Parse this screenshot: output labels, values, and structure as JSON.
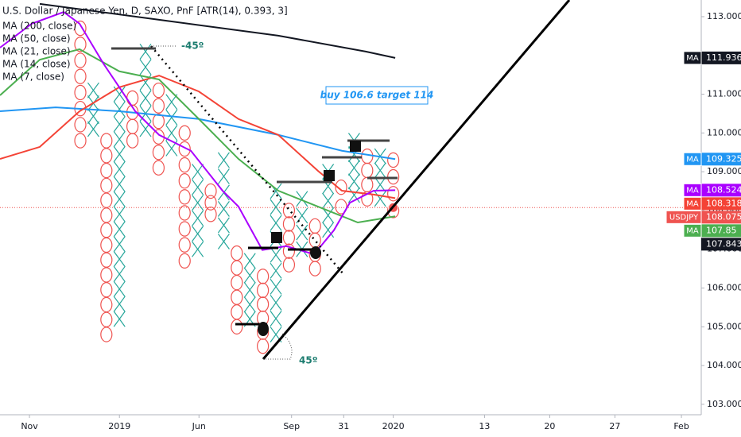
{
  "chart_data": {
    "type": "pnf",
    "title": "U.S. Dollar / Japanese Yen, D, SAXO, PnF [ATR(14), 0.393, 3]",
    "box_size": 0.393,
    "ylim": [
      102.73,
      113.43
    ],
    "yticks": [
      {
        "value": 103,
        "label": "103.000"
      },
      {
        "value": 104,
        "label": "104.000"
      },
      {
        "value": 105,
        "label": "105.000"
      },
      {
        "value": 106,
        "label": "106.000"
      },
      {
        "value": 107,
        "label": "107.000"
      },
      {
        "value": 108,
        "label": "108.000"
      },
      {
        "value": 109,
        "label": "109.000"
      },
      {
        "value": 110,
        "label": "110.000"
      },
      {
        "value": 111,
        "label": "111.000"
      },
      {
        "value": 112,
        "label": "112.000"
      },
      {
        "value": 113,
        "label": "113.000"
      }
    ],
    "xlim": [
      -6.16,
      47.62
    ],
    "xticks": [
      {
        "value": -3.9,
        "label": "Nov"
      },
      {
        "value": 3.0,
        "label": "2019"
      },
      {
        "value": 9.1,
        "label": "Jun"
      },
      {
        "value": 16.2,
        "label": "Sep"
      },
      {
        "value": 20.2,
        "label": "31"
      },
      {
        "value": 24.0,
        "label": "2020"
      },
      {
        "value": 31.0,
        "label": "13"
      },
      {
        "value": 36.0,
        "label": "20"
      },
      {
        "value": 41.0,
        "label": "27"
      },
      {
        "value": 46.1,
        "label": "Feb"
      }
    ],
    "colors": {
      "X": "#26a69a",
      "O": "#ef5350"
    },
    "columns": [
      {
        "x": 0,
        "kind": "O",
        "high": 112.7,
        "low": 109.8
      },
      {
        "x": 1,
        "kind": "X",
        "high": 111.1,
        "low": 110.1
      },
      {
        "x": 2,
        "kind": "O",
        "high": 109.8,
        "low": 104.8
      },
      {
        "x": 3,
        "kind": "X",
        "high": 111.0,
        "low": 105.2
      },
      {
        "x": 4,
        "kind": "O",
        "high": 110.9,
        "low": 109.8
      },
      {
        "x": 5,
        "kind": "X",
        "high": 112.1,
        "low": 110.1
      },
      {
        "x": 6,
        "kind": "O",
        "high": 111.1,
        "low": 109.1
      },
      {
        "x": 7,
        "kind": "X",
        "high": 110.8,
        "low": 109.6
      },
      {
        "x": 8,
        "kind": "O",
        "high": 110.0,
        "low": 106.7
      },
      {
        "x": 9,
        "kind": "X",
        "high": 109.0,
        "low": 107.0
      },
      {
        "x": 10,
        "kind": "O",
        "high": 108.5,
        "low": 107.9
      },
      {
        "x": 11,
        "kind": "X",
        "high": 109.3,
        "low": 107.2
      },
      {
        "x": 12,
        "kind": "O",
        "high": 106.9,
        "low": 105.0
      },
      {
        "x": 13,
        "kind": "X",
        "high": 106.7,
        "low": 105.2
      },
      {
        "x": 14,
        "kind": "O",
        "high": 106.3,
        "low": 104.5
      },
      {
        "x": 15,
        "kind": "X",
        "high": 108.5,
        "low": 104.8
      },
      {
        "x": 16,
        "kind": "O",
        "high": 108.0,
        "low": 106.6
      },
      {
        "x": 17,
        "kind": "X",
        "high": 108.3,
        "low": 107.0
      },
      {
        "x": 18,
        "kind": "O",
        "high": 107.6,
        "low": 106.5
      },
      {
        "x": 19,
        "kind": "X",
        "high": 109.0,
        "low": 107.5
      },
      {
        "x": 20,
        "kind": "O",
        "high": 108.6,
        "low": 108.1
      },
      {
        "x": 21,
        "kind": "X",
        "high": 109.8,
        "low": 108.4
      },
      {
        "x": 22,
        "kind": "O",
        "high": 109.4,
        "low": 108.3
      },
      {
        "x": 23,
        "kind": "X",
        "high": 109.4,
        "low": 108.3
      },
      {
        "x": 24,
        "kind": "O",
        "high": 109.3,
        "low": 108.0
      }
    ],
    "series": [
      {
        "name": "MA (200, close)",
        "tag": "MA",
        "color": "#131722",
        "last": 111.936,
        "x": [
          -3.11,
          6.04,
          15.18,
          21.89,
          24.15
        ],
        "values": [
          113.33,
          112.92,
          112.51,
          112.1,
          111.936
        ]
      },
      {
        "name": "MA (50, close)",
        "tag": "MA",
        "color": "#2196f3",
        "last": 109.325,
        "x": [
          -6.16,
          -1.89,
          2.99,
          9.09,
          15.18,
          20.06,
          24.15
        ],
        "values": [
          110.56,
          110.66,
          110.56,
          110.36,
          109.95,
          109.54,
          109.325
        ]
      },
      {
        "name": "MA (21, close)",
        "tag": "MA",
        "color": "#f44336",
        "last": 108.318,
        "x": [
          -6.16,
          -3.11,
          -0.06,
          2.99,
          6.04,
          9.09,
          12.13,
          15.18,
          18.23,
          20.06,
          22.5,
          24.15
        ],
        "values": [
          109.33,
          109.64,
          110.56,
          111.18,
          111.48,
          111.07,
          110.36,
          109.95,
          109.02,
          108.51,
          108.41,
          108.318
        ]
      },
      {
        "name": "MA (14, close)",
        "tag": "MA",
        "color": "#4caf50",
        "last": 107.85,
        "x": [
          -6.16,
          -3.11,
          -0.06,
          2.99,
          6.04,
          9.09,
          12.13,
          15.18,
          18.23,
          21.28,
          24.15
        ],
        "values": [
          110.97,
          111.89,
          112.16,
          111.59,
          111.38,
          110.36,
          109.33,
          108.51,
          108.1,
          107.69,
          107.85
        ]
      },
      {
        "name": "MA (7, close)",
        "tag": "MA",
        "color": "#aa00ff",
        "last": 108.524,
        "x": [
          -6.16,
          -3.72,
          -1.28,
          -0.06,
          1.77,
          2.99,
          4.21,
          6.04,
          8.48,
          10.91,
          12.13,
          13.96,
          15.79,
          17.93,
          19.45,
          20.67,
          22.5,
          24.15
        ],
        "values": [
          112.2,
          112.82,
          113.12,
          112.82,
          111.79,
          111.18,
          110.56,
          109.95,
          109.54,
          108.51,
          108.1,
          106.98,
          107.08,
          106.87,
          107.49,
          108.2,
          108.51,
          108.524
        ]
      }
    ],
    "price": {
      "tag": "USDJPY",
      "value": 108.075,
      "color": "#ef5350"
    },
    "crosshair": {
      "value": 107.843
    },
    "annotations": [
      "-45º",
      "45º",
      "buy 106.6 target 114"
    ]
  }
}
